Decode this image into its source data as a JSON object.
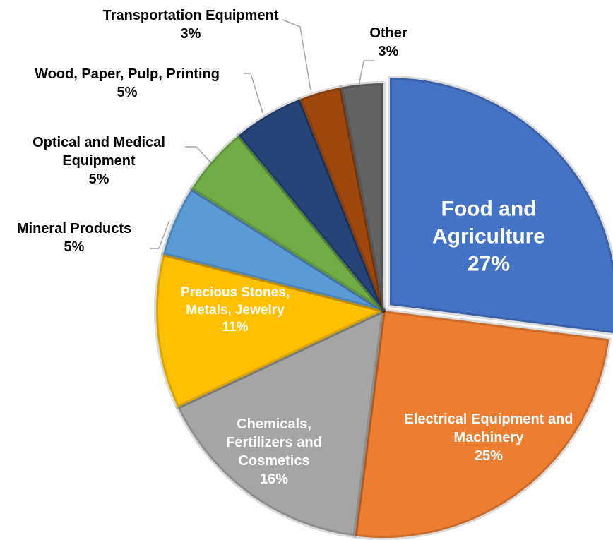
{
  "chart_data": {
    "type": "pie",
    "categories": [
      "Food and Agriculture",
      "Electrical Equipment and Machinery",
      "Chemicals, Fertilizers and Cosmetics",
      "Precious Stones, Metals, Jewelry",
      "Mineral Products",
      "Optical and Medical Equipment",
      "Wood, Paper, Pulp, Printing",
      "Transportation Equipment",
      "Other"
    ],
    "values": [
      27,
      25,
      16,
      11,
      5,
      5,
      5,
      3,
      3
    ],
    "value_labels": [
      "27%",
      "25%",
      "16%",
      "11%",
      "5%",
      "5%",
      "5%",
      "3%",
      "3%"
    ],
    "colors": [
      "#4472c4",
      "#ed7d31",
      "#a5a5a5",
      "#ffc000",
      "#5b9bd5",
      "#70ad47",
      "#264478",
      "#9e480e",
      "#636363"
    ]
  }
}
